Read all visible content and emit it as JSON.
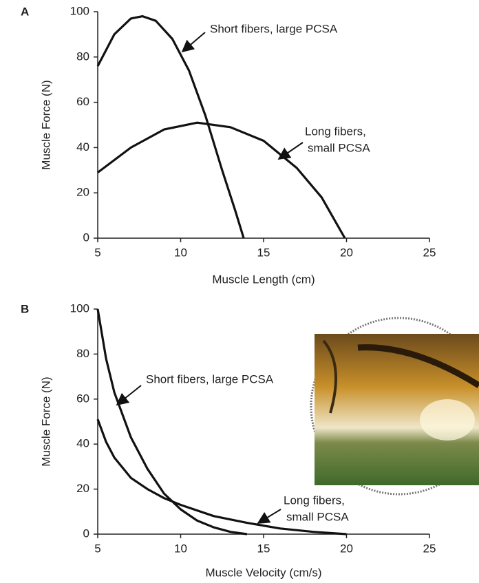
{
  "chart_data": [
    {
      "type": "line",
      "panel_label": "A",
      "xlabel": "Muscle Length (cm)",
      "ylabel": "Muscle Force (N)",
      "xlim": [
        5,
        25
      ],
      "xticks": [
        5,
        10,
        15,
        20,
        25
      ],
      "ylim": [
        0,
        100
      ],
      "yticks": [
        0,
        20,
        40,
        60,
        80,
        100
      ],
      "series": [
        {
          "color": "#111111",
          "x": [
            5,
            6,
            7,
            7.7,
            8.5,
            9.5,
            10.5,
            11.5,
            12.5,
            13.3,
            13.8
          ],
          "values": [
            76,
            90,
            97,
            98,
            96,
            88,
            74,
            54,
            30,
            12,
            0
          ]
        },
        {
          "color": "#111111",
          "x": [
            5,
            7,
            9,
            11,
            13,
            15,
            17,
            18.5,
            19.9
          ],
          "values": [
            29,
            40,
            48,
            51,
            49,
            43,
            31,
            18,
            0
          ]
        }
      ],
      "annotations": [
        {
          "lines": [
            "Short fibers, large PCSA"
          ]
        },
        {
          "lines": [
            "Long fibers,",
            "small PCSA"
          ]
        }
      ]
    },
    {
      "type": "line",
      "panel_label": "B",
      "xlabel": "Muscle Velocity (cm/s)",
      "ylabel": "Muscle Force (N)",
      "xlim": [
        5,
        25
      ],
      "xticks": [
        5,
        10,
        15,
        20,
        25
      ],
      "ylim": [
        0,
        100
      ],
      "yticks": [
        0,
        20,
        40,
        60,
        80,
        100
      ],
      "series": [
        {
          "color": "#111111",
          "x": [
            5,
            5.5,
            6,
            7,
            8,
            9,
            10,
            11,
            12,
            13,
            14
          ],
          "values": [
            100,
            78,
            63,
            43,
            29,
            18,
            11,
            6,
            3,
            1,
            0
          ]
        },
        {
          "color": "#111111",
          "x": [
            5,
            5.5,
            6,
            7,
            8,
            9,
            10,
            12,
            14,
            16,
            18,
            20
          ],
          "values": [
            51,
            41,
            34,
            25,
            20,
            16,
            13,
            8,
            5,
            2.5,
            1,
            0
          ]
        }
      ],
      "annotations": [
        {
          "lines": [
            "Short fibers, large PCSA"
          ]
        },
        {
          "lines": [
            "Long fibers,",
            "small PCSA"
          ]
        }
      ]
    }
  ]
}
